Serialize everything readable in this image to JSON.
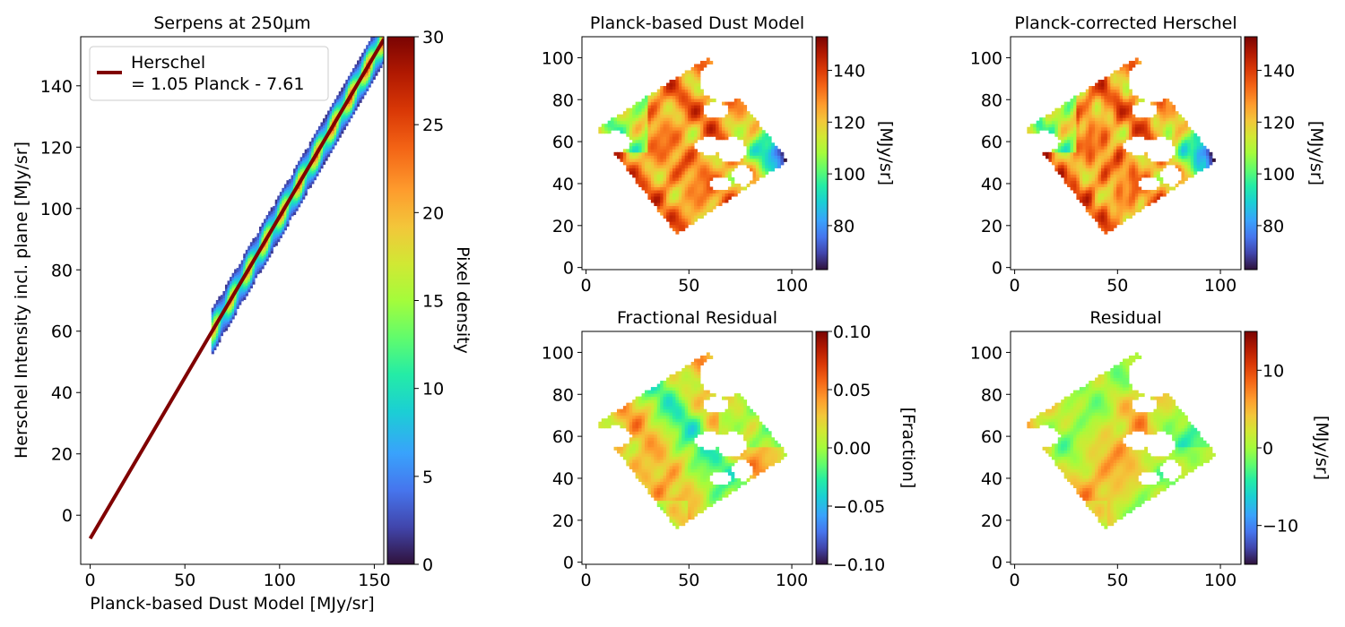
{
  "colors": {
    "fit_line": "#800000",
    "turbo_colormap": [
      "#30123b",
      "#4145ab",
      "#4675ed",
      "#39a2fc",
      "#1bcfd4",
      "#24eca6",
      "#61fc6c",
      "#a4fc3b",
      "#d1e834",
      "#f3c63a",
      "#fe9b2d",
      "#f36315",
      "#d93806",
      "#b11901",
      "#7a0403"
    ]
  },
  "chart_data": [
    {
      "id": "scatter",
      "type": "heatmap",
      "title": "Serpens at 250µm",
      "xlabel": "Planck-based Dust Model [MJy/sr]",
      "ylabel": "Herschel Intensity incl. plane [MJy/sr]",
      "xlim": [
        -5,
        155
      ],
      "ylim": [
        -16,
        156
      ],
      "xticks": [
        0,
        50,
        100,
        150
      ],
      "yticks": [
        0,
        20,
        40,
        60,
        80,
        100,
        120,
        140
      ],
      "fit": {
        "slope": 1.05,
        "intercept": -7.61,
        "x_range": [
          0,
          155
        ]
      },
      "density_band": {
        "x_range": [
          64,
          155
        ],
        "half_width": 3.5
      },
      "legend": {
        "position": "top-left",
        "line1": "Herschel",
        "line2": "= 1.05 Planck - 7.61"
      },
      "colorbar": {
        "label": "Pixel density",
        "range": [
          0,
          30
        ],
        "ticks": [
          0,
          5,
          10,
          15,
          20,
          25,
          30
        ]
      },
      "grid": false
    },
    {
      "id": "dust",
      "type": "heatmap",
      "title": "Planck-based Dust Model",
      "xlim": [
        -2,
        110
      ],
      "ylim": [
        -1,
        110
      ],
      "xticks": [
        0,
        50,
        100
      ],
      "yticks": [
        0,
        20,
        40,
        60,
        80,
        100
      ],
      "colorbar": {
        "label": "[MJy/sr]",
        "range": [
          63,
          153
        ],
        "ticks": [
          80,
          100,
          120,
          140
        ]
      },
      "map_range": [
        63,
        153
      ]
    },
    {
      "id": "corrected",
      "type": "heatmap",
      "title": "Planck-corrected Herschel",
      "xlim": [
        -2,
        110
      ],
      "ylim": [
        -1,
        110
      ],
      "xticks": [
        0,
        50,
        100
      ],
      "yticks": [
        0,
        20,
        40,
        60,
        80,
        100
      ],
      "colorbar": {
        "label": "[MJy/sr]",
        "range": [
          63,
          153
        ],
        "ticks": [
          80,
          100,
          120,
          140
        ]
      },
      "map_range": [
        63,
        153
      ]
    },
    {
      "id": "fractional",
      "type": "heatmap",
      "title": "Fractional Residual",
      "xlim": [
        -2,
        110
      ],
      "ylim": [
        -1,
        110
      ],
      "xticks": [
        0,
        50,
        100
      ],
      "yticks": [
        0,
        20,
        40,
        60,
        80,
        100
      ],
      "colorbar": {
        "label": "[Fraction]",
        "range": [
          -0.1,
          0.1
        ],
        "ticks": [
          -0.1,
          -0.05,
          0.0,
          0.05,
          0.1
        ],
        "tick_labels": [
          "−0.10",
          "−0.05",
          "0.00",
          "0.05",
          "0.10"
        ]
      },
      "map_range": [
        -0.1,
        0.1
      ]
    },
    {
      "id": "residual",
      "type": "heatmap",
      "title": "Residual",
      "xlim": [
        -2,
        110
      ],
      "ylim": [
        -1,
        110
      ],
      "xticks": [
        0,
        50,
        100
      ],
      "yticks": [
        0,
        20,
        40,
        60,
        80,
        100
      ],
      "colorbar": {
        "label": "[MJy/sr]",
        "range": [
          -15,
          15
        ],
        "ticks": [
          -10,
          0,
          10
        ],
        "tick_labels": [
          "−10",
          "0",
          "10"
        ]
      },
      "map_range": [
        -15,
        15
      ]
    }
  ],
  "map_geometry": {
    "footprint": [
      [
        5,
        66
      ],
      [
        59,
        100
      ],
      [
        98,
        51
      ],
      [
        44,
        16
      ]
    ],
    "holes": [
      {
        "cx": 67,
        "cy": 89,
        "rx": 12,
        "ry": 10
      },
      {
        "cx": 63,
        "cy": 75,
        "rx": 6,
        "ry": 4
      },
      {
        "cx": 14,
        "cy": 60,
        "rx": 8,
        "ry": 5
      },
      {
        "cx": 60,
        "cy": 58,
        "rx": 8,
        "ry": 4
      },
      {
        "cx": 71,
        "cy": 56,
        "rx": 7,
        "ry": 6
      },
      {
        "cx": 76,
        "cy": 44,
        "rx": 5,
        "ry": 5
      },
      {
        "cx": 65,
        "cy": 40,
        "rx": 5,
        "ry": 3
      }
    ]
  }
}
